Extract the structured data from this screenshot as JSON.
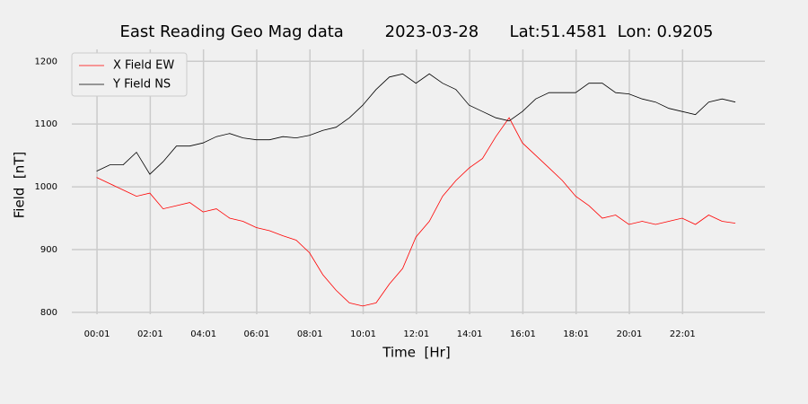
{
  "chart_data": {
    "type": "line",
    "title": "East Reading Geo Mag data        2023-03-28      Lat:51.4581  Lon: 0.9205",
    "x_label": "Time  [Hr]",
    "y_label": "Field  [nT]",
    "x": [
      0,
      0.5,
      1,
      1.5,
      2,
      2.5,
      3,
      3.5,
      4,
      4.5,
      5,
      5.5,
      6,
      6.5,
      7,
      7.5,
      8,
      8.5,
      9,
      9.5,
      10,
      10.5,
      11,
      11.5,
      12,
      12.5,
      13,
      13.5,
      14,
      14.5,
      15,
      15.5,
      16,
      16.5,
      17,
      17.5,
      18,
      18.5,
      19,
      19.5,
      20,
      20.5,
      21,
      21.5,
      22,
      22.5,
      23,
      23.5,
      24
    ],
    "series": [
      {
        "name": "X Field EW",
        "color": "#ff0000",
        "values": [
          1015,
          1005,
          995,
          985,
          990,
          965,
          970,
          975,
          960,
          965,
          950,
          945,
          935,
          930,
          922,
          915,
          895,
          860,
          835,
          815,
          810,
          815,
          845,
          870,
          920,
          945,
          985,
          1010,
          1030,
          1045,
          1080,
          1110,
          1070,
          1050,
          1030,
          1010,
          985,
          970,
          950,
          955,
          940,
          945,
          940,
          945,
          950,
          940,
          955,
          945,
          942
        ]
      },
      {
        "name": "Y Field NS",
        "color": "#000000",
        "values": [
          1025,
          1035,
          1035,
          1055,
          1020,
          1040,
          1065,
          1065,
          1070,
          1080,
          1085,
          1078,
          1075,
          1075,
          1080,
          1078,
          1082,
          1090,
          1095,
          1110,
          1130,
          1155,
          1175,
          1180,
          1165,
          1180,
          1165,
          1155,
          1130,
          1120,
          1110,
          1105,
          1120,
          1140,
          1150,
          1150,
          1150,
          1165,
          1165,
          1150,
          1148,
          1140,
          1135,
          1125,
          1120,
          1115,
          1135,
          1140,
          1135
        ]
      }
    ],
    "xlim": [
      -0.93,
      25.11
    ],
    "xticks": [
      {
        "value": 0.0167,
        "label": "00:01"
      },
      {
        "value": 2.0167,
        "label": "02:01"
      },
      {
        "value": 4.0167,
        "label": "04:01"
      },
      {
        "value": 6.0167,
        "label": "06:01"
      },
      {
        "value": 8.0167,
        "label": "08:01"
      },
      {
        "value": 10.0167,
        "label": "10:01"
      },
      {
        "value": 12.0167,
        "label": "12:01"
      },
      {
        "value": 14.0167,
        "label": "14:01"
      },
      {
        "value": 16.0167,
        "label": "16:01"
      },
      {
        "value": 18.0167,
        "label": "18:01"
      },
      {
        "value": 20.0167,
        "label": "20:01"
      },
      {
        "value": 22.0167,
        "label": "22:01"
      }
    ],
    "ylim": [
      797,
      1219
    ],
    "yticks": [
      800,
      900,
      1000,
      1100,
      1200
    ],
    "grid": true,
    "legend": "upper left"
  }
}
